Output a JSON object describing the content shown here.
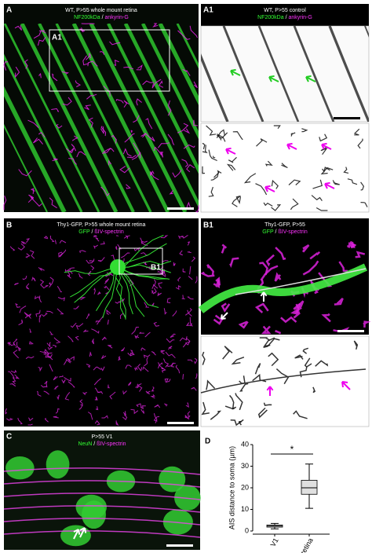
{
  "panels": {
    "A": {
      "label": "A",
      "title": "WT, P>55 whole mount retina",
      "stain_1": "NF200kDa",
      "separator": " / ",
      "stain_2": "ankyrin-G",
      "inset": "A1"
    },
    "A1": {
      "label": "A1",
      "title": "WT, P>55 control",
      "stain_1": "NF200kDa",
      "separator": " / ",
      "stain_2": "ankyrin-G"
    },
    "B": {
      "label": "B",
      "title": "Thy1-GFP, P>55 whole mount retina",
      "stain_1": "GFP",
      "separator": " / ",
      "stain_2": "ßIV-spectrin",
      "inset": "B1"
    },
    "B1": {
      "label": "B1",
      "title": "Thy1-GFP, P>55",
      "stain_1": "GFP",
      "separator": " / ",
      "stain_2": "ßIV-spectrin"
    },
    "C": {
      "label": "C",
      "title": "P>55 V1",
      "stain_1": "NeuN",
      "separator": " / ",
      "stain_2": "ßIV-spectrin"
    },
    "D": {
      "label": "D"
    }
  },
  "chart_data": {
    "type": "box",
    "ylabel": "AIS distance to soma (µm)",
    "categories": [
      "V1",
      "retina"
    ],
    "min": [
      1,
      10.5
    ],
    "q1": [
      1.8,
      17
    ],
    "median": [
      2.3,
      20
    ],
    "q3": [
      2.8,
      23.5
    ],
    "max": [
      3.5,
      31
    ],
    "color": "#e0e0e0",
    "ylim": [
      0,
      40
    ],
    "yticks": [
      0,
      10,
      20,
      30,
      40
    ],
    "significance": "*"
  }
}
